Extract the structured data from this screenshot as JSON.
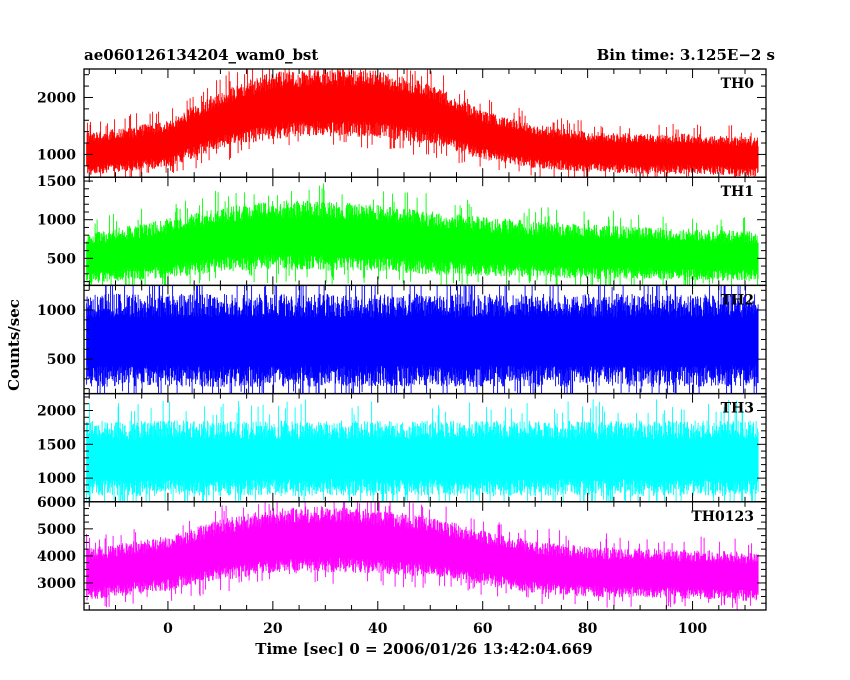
{
  "chart_data": {
    "type": "line",
    "header_left": "ae060126134204_wam0_bst",
    "header_right": "Bin time: 3.125E−2 s",
    "xlabel": "Time [sec] 0 = 2006/01/26 13:42:04.669",
    "ylabel": "Counts/sec",
    "xlim": [
      -16,
      114
    ],
    "x_ticks": [
      0,
      20,
      40,
      60,
      80,
      100
    ],
    "x_minor_step": 5,
    "data_x_range": [
      -15.5,
      112.5
    ],
    "bin_time": 0.03125,
    "grid": false,
    "panels": [
      {
        "name": "TH0",
        "color": "#ff0000",
        "ylim": [
          600,
          2500
        ],
        "y_ticks": [
          1000,
          2000
        ],
        "y_minor_step": 200,
        "envelope_x": [
          -15.5,
          0,
          10,
          20,
          30,
          40,
          50,
          60,
          70,
          80,
          90,
          100,
          112.5
        ],
        "envelope_mean": [
          1000,
          1170,
          1600,
          1850,
          1900,
          1870,
          1700,
          1330,
          1130,
          1040,
          1000,
          1000,
          950
        ],
        "envelope_halfwidth": [
          350,
          380,
          480,
          550,
          550,
          550,
          500,
          400,
          360,
          330,
          330,
          330,
          330
        ]
      },
      {
        "name": "TH1",
        "color": "#00ff00",
        "ylim": [
          150,
          1550
        ],
        "y_ticks": [
          500,
          1000,
          1500
        ],
        "y_minor_step": 100,
        "envelope_x": [
          -15.5,
          0,
          10,
          20,
          30,
          40,
          50,
          60,
          70,
          80,
          90,
          100,
          112.5
        ],
        "envelope_mean": [
          490,
          620,
          730,
          790,
          780,
          750,
          690,
          640,
          610,
          580,
          560,
          540,
          520
        ],
        "envelope_halfwidth": [
          300,
          360,
          390,
          420,
          420,
          400,
          380,
          360,
          340,
          330,
          320,
          310,
          300
        ]
      },
      {
        "name": "TH2",
        "color": "#0000ff",
        "ylim": [
          150,
          1250
        ],
        "y_ticks": [
          500,
          1000
        ],
        "y_minor_step": 100,
        "envelope_x": [
          -15.5,
          112.5
        ],
        "envelope_mean": [
          680,
          680
        ],
        "envelope_halfwidth": [
          440,
          440
        ]
      },
      {
        "name": "TH3",
        "color": "#00ffff",
        "ylim": [
          650,
          2250
        ],
        "y_ticks": [
          1000,
          1500,
          2000
        ],
        "y_minor_step": 100,
        "envelope_x": [
          -15.5,
          112.5
        ],
        "envelope_mean": [
          1280,
          1280
        ],
        "envelope_halfwidth": [
          520,
          520
        ]
      },
      {
        "name": "TH0123",
        "color": "#ff00ff",
        "ylim": [
          2000,
          6000
        ],
        "y_ticks": [
          3000,
          4000,
          5000,
          6000
        ],
        "y_minor_step": 250,
        "envelope_x": [
          -15.5,
          0,
          10,
          20,
          30,
          40,
          50,
          60,
          70,
          80,
          90,
          100,
          112.5
        ],
        "envelope_mean": [
          3300,
          3700,
          4200,
          4500,
          4600,
          4500,
          4300,
          3900,
          3550,
          3400,
          3350,
          3300,
          3200
        ],
        "envelope_halfwidth": [
          900,
          950,
          1050,
          1150,
          1150,
          1100,
          1050,
          950,
          900,
          870,
          850,
          850,
          850
        ]
      }
    ]
  }
}
